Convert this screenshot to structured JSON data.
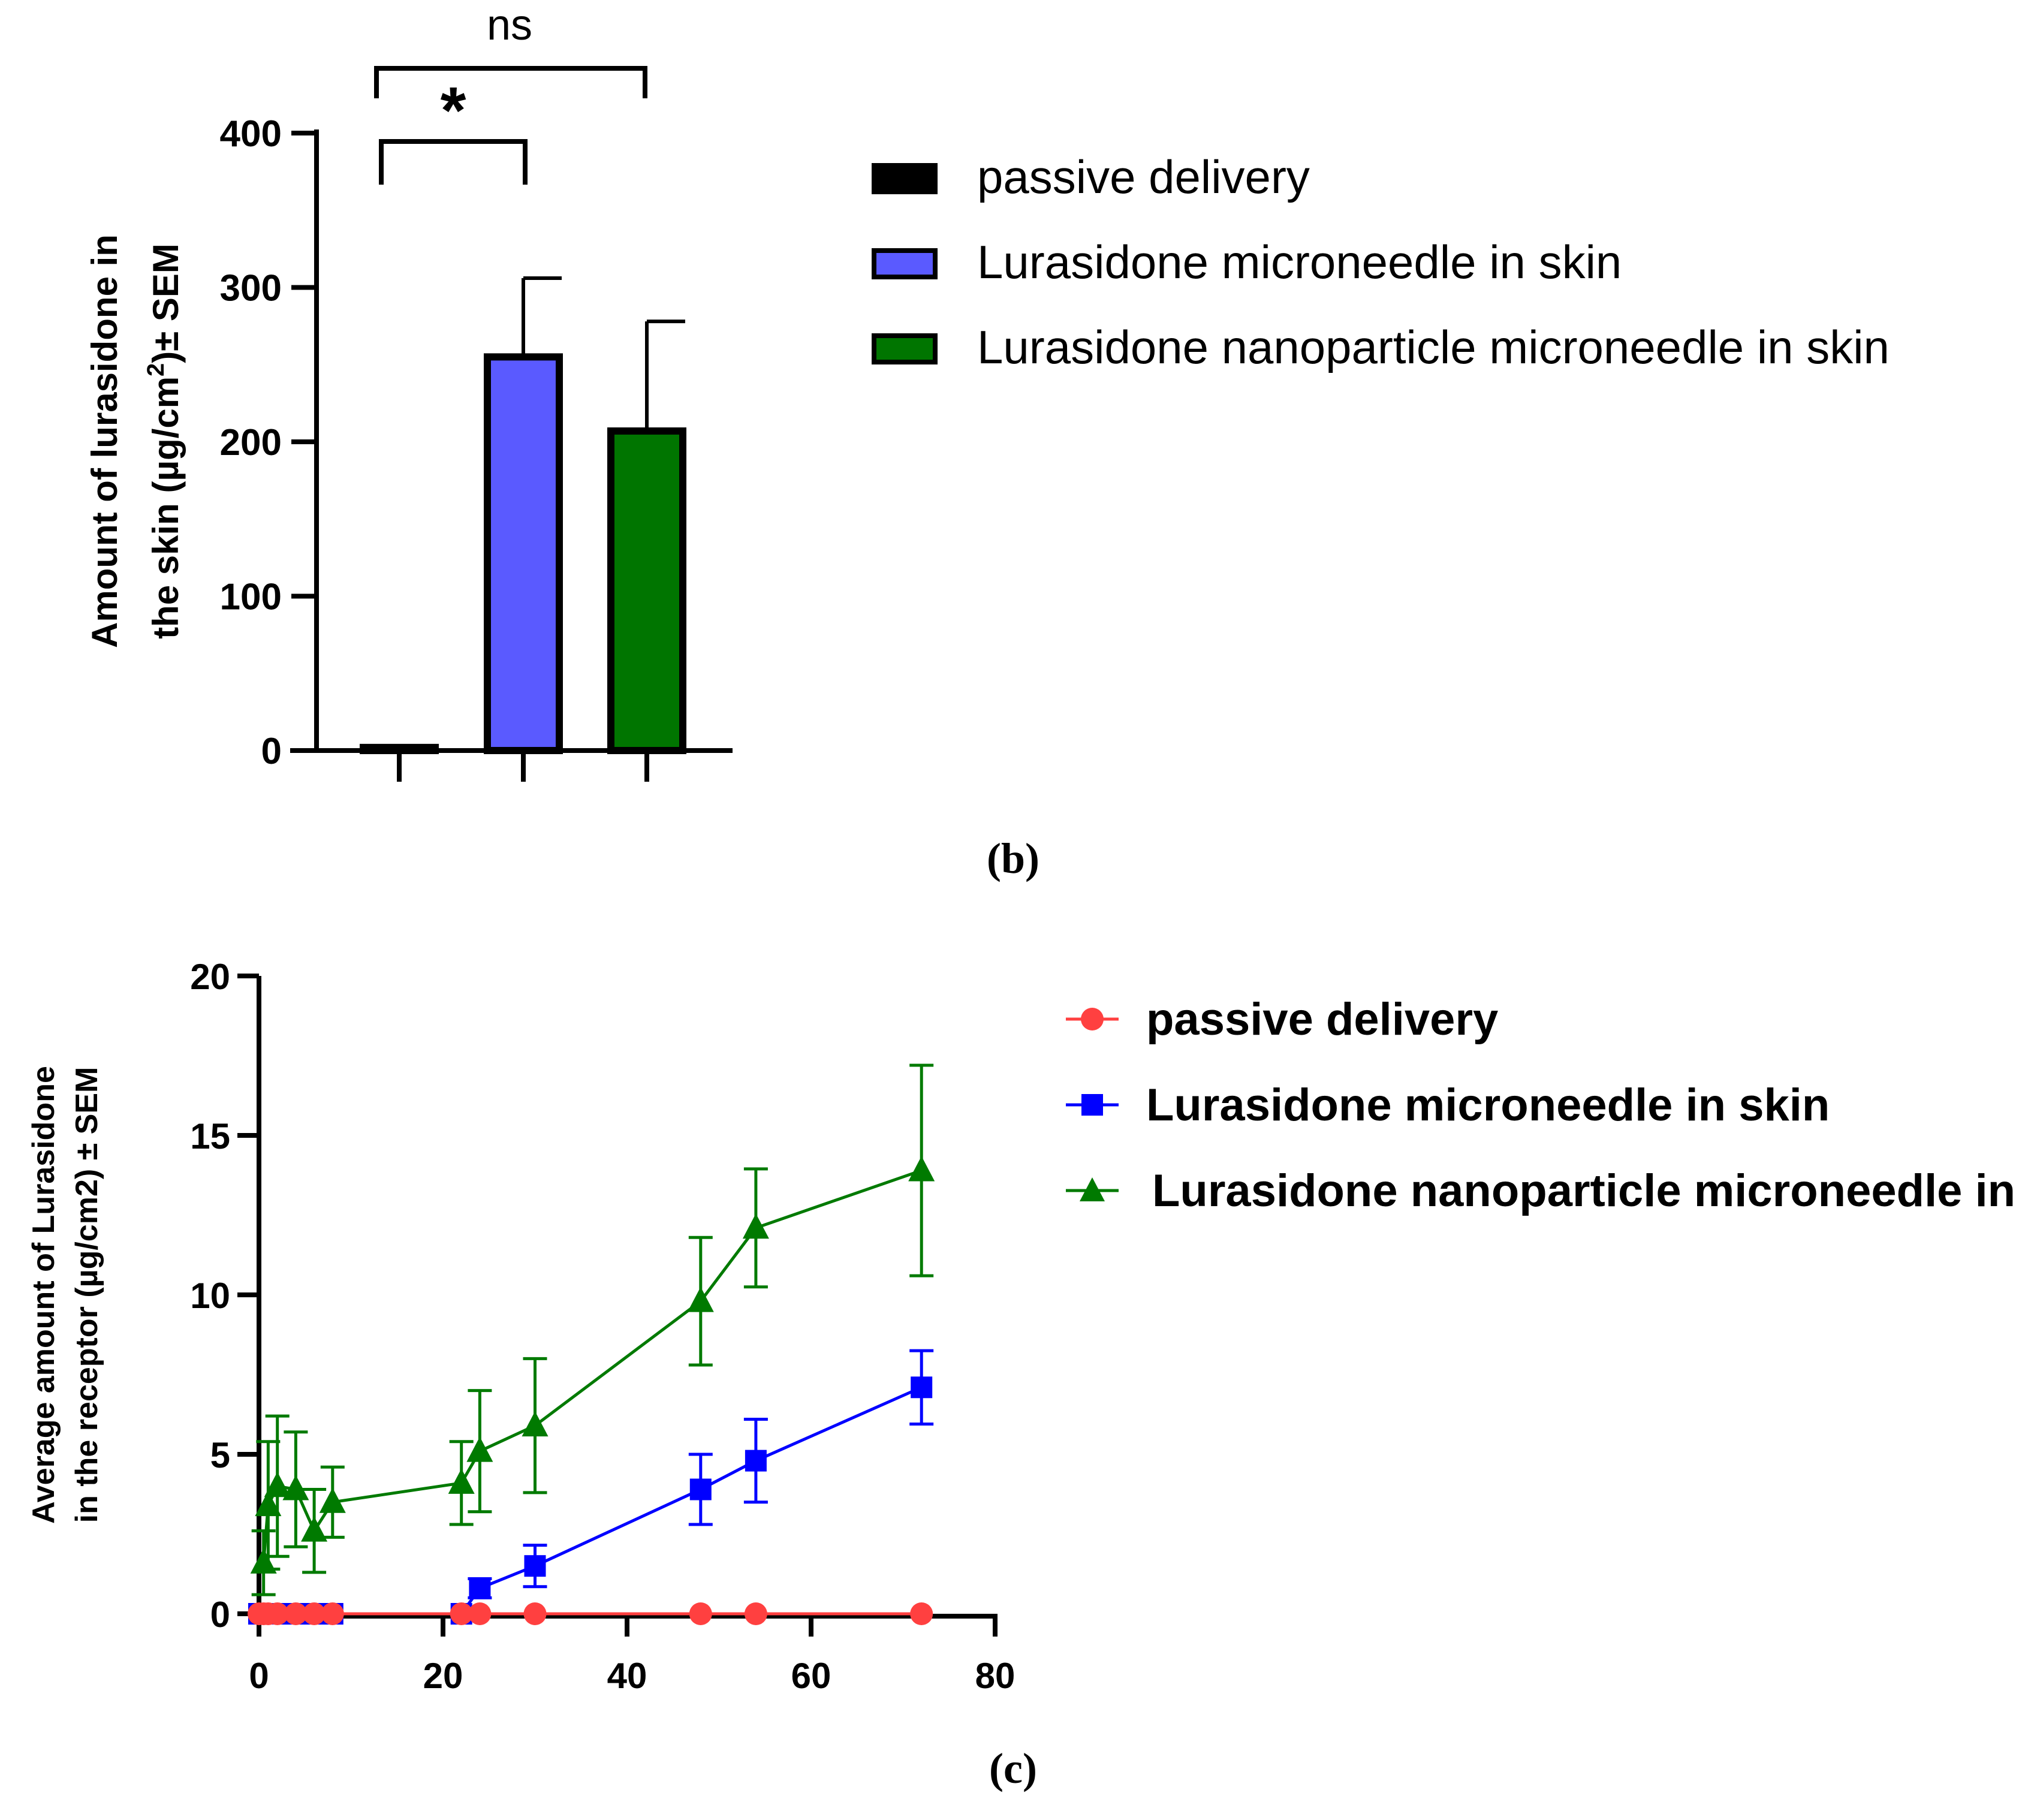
{
  "panel_b": {
    "label": "(b)",
    "chart_data": {
      "type": "bar",
      "categories": [
        "passive delivery",
        "Lurasidone microneedle in skin",
        "Lurasidone nanoparticle microneedle in skin"
      ],
      "values": [
        2,
        255,
        207
      ],
      "errors": [
        0,
        51,
        71
      ],
      "colors": [
        "#000000",
        "#5a5aff",
        "#007500"
      ],
      "ylabel_line1": "Amount of lurasidone in",
      "ylabel_line2_pre": "the skin (µg/cm",
      "ylabel_line2_sup": "2",
      "ylabel_line2_post": ")± SEM",
      "ylim": [
        0,
        400
      ],
      "yticks": [
        "0",
        "100",
        "200",
        "300",
        "400"
      ],
      "legend": [
        "passive delivery",
        "Lurasidone microneedle in skin",
        "Lurasidone nanoparticle microneedle in skin"
      ],
      "significance": [
        {
          "label": "*",
          "from": 0,
          "to": 1
        },
        {
          "label": "ns",
          "from": 0,
          "to": 2
        }
      ]
    }
  },
  "panel_c": {
    "label": "(c)",
    "chart_data": {
      "type": "line",
      "ylabel_line1": "Average amount of Lurasidone",
      "ylabel_line2": "in the receptor (µg/cm2) ± SEM",
      "xlim": [
        0,
        80
      ],
      "ylim": [
        0,
        20
      ],
      "xticks": [
        "0",
        "20",
        "40",
        "60",
        "80"
      ],
      "yticks": [
        "0",
        "5",
        "10",
        "15",
        "20"
      ],
      "series": [
        {
          "name": "passive delivery",
          "color": "#ff4040",
          "marker": "circle",
          "x": [
            0,
            0.5,
            1,
            2,
            4,
            6,
            8,
            22,
            24,
            30,
            48,
            54,
            72
          ],
          "y": [
            0,
            0,
            0,
            0,
            0,
            0,
            0,
            0,
            0,
            0,
            0,
            0,
            0
          ],
          "err": [
            0,
            0,
            0,
            0,
            0,
            0,
            0,
            0,
            0,
            0,
            0,
            0,
            0
          ]
        },
        {
          "name": "Lurasidone microneedle in skin",
          "color": "#0000ff",
          "marker": "square",
          "x": [
            0,
            0.5,
            1,
            2,
            4,
            6,
            8,
            22,
            24,
            30,
            48,
            54,
            72
          ],
          "y": [
            0,
            0,
            0,
            0,
            0,
            0,
            0,
            0,
            0.8,
            1.5,
            3.9,
            4.8,
            7.1
          ],
          "err": [
            0,
            0,
            0,
            0,
            0,
            0,
            0,
            0,
            0.3,
            0.65,
            1.1,
            1.3,
            1.15
          ]
        },
        {
          "name": "Lurasidone nanoparticle microneedle in skin",
          "color": "#007a00",
          "marker": "triangle",
          "x": [
            0.5,
            1,
            2,
            4,
            6,
            8,
            22,
            24,
            30,
            48,
            54,
            72
          ],
          "y": [
            1.6,
            3.4,
            4.0,
            3.9,
            2.6,
            3.5,
            4.1,
            5.1,
            5.9,
            9.8,
            12.1,
            13.9
          ],
          "err": [
            1.0,
            2.0,
            2.2,
            1.8,
            1.3,
            1.1,
            1.3,
            1.9,
            2.1,
            2.0,
            1.85,
            3.3
          ]
        }
      ],
      "legend": [
        "passive delivery",
        "Lurasidone microneedle in skin",
        "Lurasidone nanoparticle microneedle in skin"
      ]
    }
  }
}
